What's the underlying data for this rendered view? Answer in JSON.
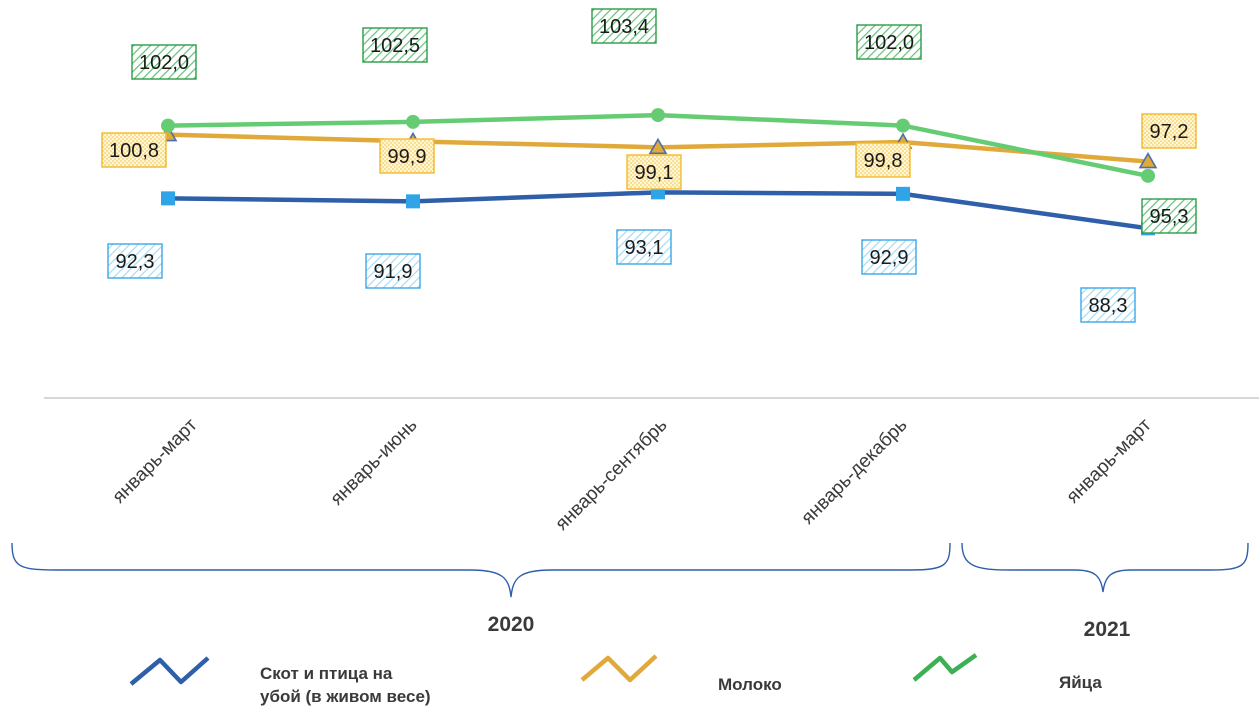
{
  "chart_data": {
    "type": "line",
    "categories": [
      "январь-март",
      "январь-июнь",
      "январь-сентябрь",
      "январь-декабрь",
      "январь-март"
    ],
    "groups": [
      {
        "label": "2020",
        "from": 0,
        "to": 3
      },
      {
        "label": "2021",
        "from": 4,
        "to": 4
      }
    ],
    "ylim": [
      80,
      106
    ],
    "grid": false,
    "legend_position": "bottom",
    "series": [
      {
        "name": "Скот и птица на убой (в живом весе)",
        "values": [
          92.3,
          91.9,
          93.1,
          92.9,
          88.3
        ],
        "labels": [
          "92,3",
          "91,9",
          "93,1",
          "92,9",
          "88,3"
        ],
        "color": "#2e5fa8",
        "marker": "square",
        "marker_color": "#2fa4e7",
        "label_border": "#3aa9e8"
      },
      {
        "name": "Молоко",
        "values": [
          100.8,
          99.9,
          99.1,
          99.8,
          97.2
        ],
        "labels": [
          "100,8",
          "99,9",
          "99,1",
          "99,8",
          "97,2"
        ],
        "color": "#e0a93a",
        "marker": "triangle",
        "marker_color": "#e0a93a",
        "label_border": "#f2b92c"
      },
      {
        "name": "Яйца",
        "values": [
          102.0,
          102.5,
          103.4,
          102.0,
          95.3
        ],
        "labels": [
          "102,0",
          "102,5",
          "103,4",
          "102,0",
          "95,3"
        ],
        "color": "#66cc73",
        "marker": "circle",
        "marker_color": "#66cc73",
        "label_border": "#2a9d48"
      }
    ]
  },
  "legend": {
    "items": [
      {
        "line1": "Скот и птица на",
        "line2": "убой (в живом весе)",
        "color": "#2e5fa8"
      },
      {
        "line1": "Молоко",
        "line2": "",
        "color": "#e0a93a"
      },
      {
        "line1": "Яйца",
        "line2": "",
        "color": "#3cb054"
      }
    ]
  }
}
